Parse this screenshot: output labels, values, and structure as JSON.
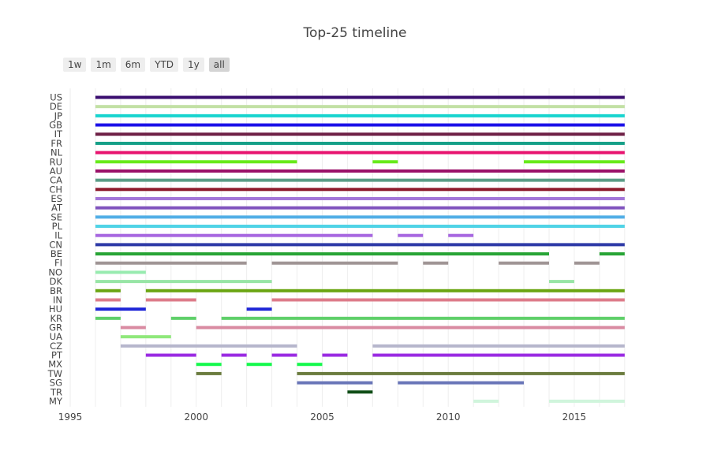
{
  "chart_data": {
    "type": "timeline",
    "title": "Top-25 timeline",
    "range_buttons": [
      "1w",
      "1m",
      "6m",
      "YTD",
      "1y",
      "all"
    ],
    "active_range_button": "all",
    "xlim": [
      1995,
      2017.6
    ],
    "xticks": [
      1995,
      2000,
      2005,
      2010,
      2015
    ],
    "grid": true,
    "rows": [
      {
        "label": "US",
        "color": "#3b0f70",
        "segments": [
          [
            1996,
            2017
          ]
        ]
      },
      {
        "label": "DE",
        "color": "#c2e0a4",
        "segments": [
          [
            1996,
            2017
          ]
        ]
      },
      {
        "label": "JP",
        "color": "#17d4cf",
        "segments": [
          [
            1996,
            2017
          ]
        ]
      },
      {
        "label": "GB",
        "color": "#1c11e8",
        "segments": [
          [
            1996,
            2017
          ]
        ]
      },
      {
        "label": "IT",
        "color": "#6e1f45",
        "segments": [
          [
            1996,
            2017
          ]
        ]
      },
      {
        "label": "FR",
        "color": "#16a088",
        "segments": [
          [
            1996,
            2017
          ]
        ]
      },
      {
        "label": "NL",
        "color": "#e8136f",
        "segments": [
          [
            1996,
            2017
          ]
        ]
      },
      {
        "label": "RU",
        "color": "#67ea1b",
        "segments": [
          [
            1996,
            2004
          ],
          [
            2007,
            2008
          ],
          [
            2013,
            2017
          ]
        ]
      },
      {
        "label": "AU",
        "color": "#9a1068",
        "segments": [
          [
            1996,
            2017
          ]
        ]
      },
      {
        "label": "CA",
        "color": "#5a9c86",
        "segments": [
          [
            1996,
            2017
          ]
        ]
      },
      {
        "label": "CH",
        "color": "#8e1a2c",
        "segments": [
          [
            1996,
            2017
          ]
        ]
      },
      {
        "label": "ES",
        "color": "#a275d8",
        "segments": [
          [
            1996,
            2017
          ]
        ]
      },
      {
        "label": "AT",
        "color": "#8054be",
        "segments": [
          [
            1996,
            2017
          ]
        ]
      },
      {
        "label": "SE",
        "color": "#51aee6",
        "segments": [
          [
            1996,
            2017
          ]
        ]
      },
      {
        "label": "PL",
        "color": "#4fd3e6",
        "segments": [
          [
            1996,
            2017
          ]
        ]
      },
      {
        "label": "IL",
        "color": "#a767e0",
        "segments": [
          [
            1996,
            2007
          ],
          [
            2008,
            2009
          ],
          [
            2010,
            2011
          ]
        ]
      },
      {
        "label": "CN",
        "color": "#2e3aa7",
        "segments": [
          [
            1996,
            2017
          ]
        ]
      },
      {
        "label": "BE",
        "color": "#27a435",
        "segments": [
          [
            1996,
            2014
          ],
          [
            2016,
            2017
          ]
        ]
      },
      {
        "label": "FI",
        "color": "#a09595",
        "segments": [
          [
            1996,
            2002
          ],
          [
            2003,
            2008
          ],
          [
            2009,
            2010
          ],
          [
            2012,
            2014
          ],
          [
            2015,
            2016
          ]
        ]
      },
      {
        "label": "NO",
        "color": "#98ebb0",
        "segments": [
          [
            1996,
            1998
          ]
        ]
      },
      {
        "label": "DK",
        "color": "#98e5a5",
        "segments": [
          [
            1996,
            2003
          ],
          [
            2014,
            2015
          ]
        ]
      },
      {
        "label": "BR",
        "color": "#6aa511",
        "segments": [
          [
            1996,
            1997
          ],
          [
            1998,
            2017
          ]
        ]
      },
      {
        "label": "IN",
        "color": "#dd7b8a",
        "segments": [
          [
            1996,
            1997
          ],
          [
            1998,
            2000
          ],
          [
            2003,
            2017
          ]
        ]
      },
      {
        "label": "HU",
        "color": "#1f26d7",
        "segments": [
          [
            1996,
            1998
          ],
          [
            2002,
            2003
          ]
        ]
      },
      {
        "label": "KR",
        "color": "#5fd06a",
        "segments": [
          [
            1996,
            1997
          ],
          [
            1999,
            2000
          ],
          [
            2001,
            2017
          ]
        ]
      },
      {
        "label": "GR",
        "color": "#d98ba2",
        "segments": [
          [
            1997,
            1998
          ],
          [
            2000,
            2017
          ]
        ]
      },
      {
        "label": "UA",
        "color": "#8fe87b",
        "segments": [
          [
            1997,
            1999
          ]
        ]
      },
      {
        "label": "CZ",
        "color": "#b6b6cc",
        "segments": [
          [
            1997,
            2004
          ],
          [
            2007,
            2017
          ]
        ]
      },
      {
        "label": "PT",
        "color": "#9a2ae2",
        "segments": [
          [
            1998,
            2000
          ],
          [
            2001,
            2002
          ],
          [
            2003,
            2004
          ],
          [
            2005,
            2006
          ],
          [
            2007,
            2017
          ]
        ]
      },
      {
        "label": "MX",
        "color": "#13f94b",
        "segments": [
          [
            2000,
            2001
          ],
          [
            2002,
            2003
          ],
          [
            2004,
            2005
          ]
        ]
      },
      {
        "label": "TW",
        "color": "#6a7b3e",
        "segments": [
          [
            2000,
            2001
          ],
          [
            2004,
            2017
          ]
        ]
      },
      {
        "label": "SG",
        "color": "#6a76b8",
        "segments": [
          [
            2004,
            2007
          ],
          [
            2008,
            2013
          ]
        ]
      },
      {
        "label": "TR",
        "color": "#0f4d16",
        "segments": [
          [
            2006,
            2007
          ]
        ]
      },
      {
        "label": "MY",
        "color": "#d0f5dc",
        "segments": [
          [
            2011,
            2012
          ],
          [
            2014,
            2017
          ]
        ]
      }
    ]
  }
}
